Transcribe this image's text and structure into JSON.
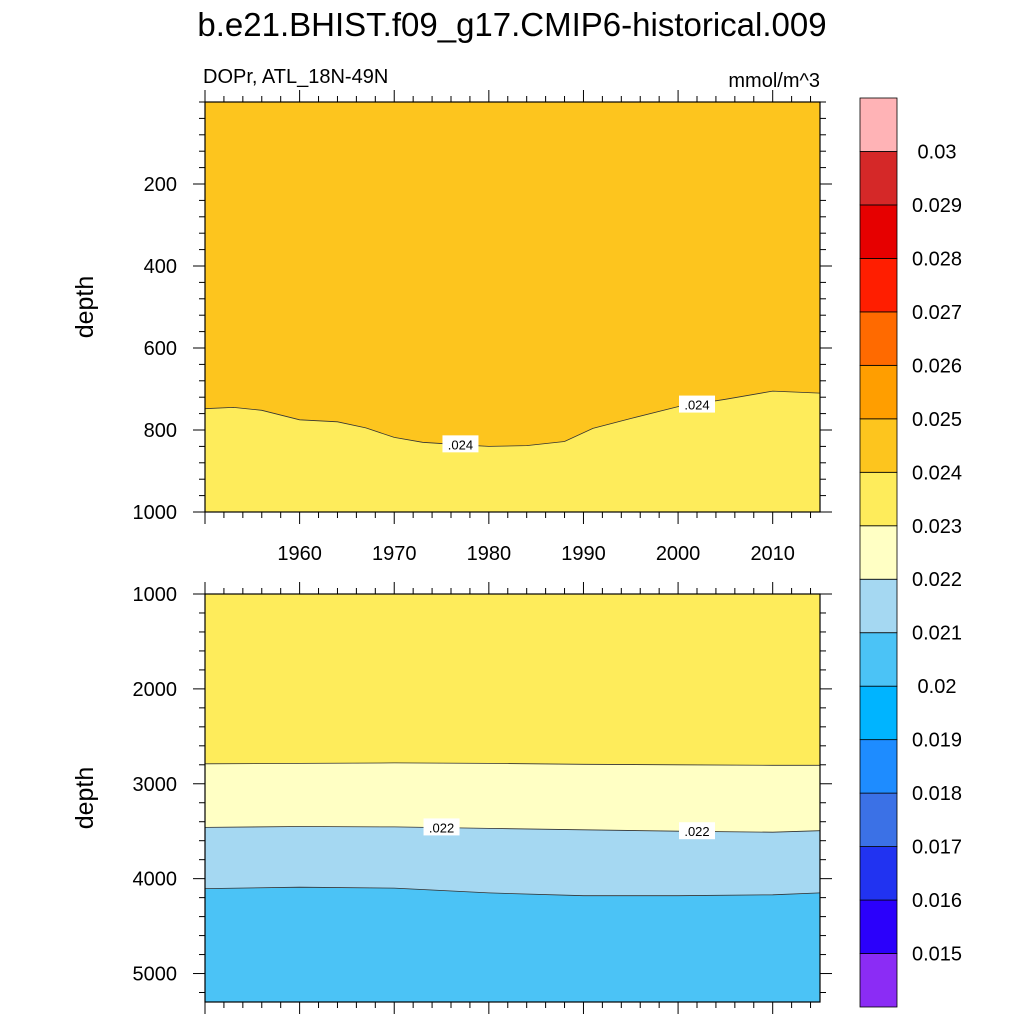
{
  "figure": {
    "title": "b.e21.BHIST.f09_g17.CMIP6-historical.009",
    "subtitle_left": "DOPr, ATL_18N-49N",
    "subtitle_right": "mmol/m^3"
  },
  "chart_data": [
    {
      "type": "contour",
      "panel": "upper",
      "xlabel": "",
      "ylabel": "depth",
      "xlim": [
        1950,
        2015
      ],
      "ylim": [
        1000,
        0
      ],
      "xticks": [
        1960,
        1970,
        1980,
        1990,
        2000,
        2010
      ],
      "xtick_labels": [
        "1960",
        "1970",
        "1980",
        "1990",
        "2000",
        "2010"
      ],
      "yticks": [
        200,
        400,
        600,
        800,
        1000
      ],
      "ytick_labels": [
        "200",
        "400",
        "600",
        "800",
        "1000"
      ],
      "x": [
        1950,
        1953,
        1956,
        1960,
        1964,
        1967,
        1970,
        1973,
        1977,
        1980,
        1984,
        1988,
        1991,
        1995,
        2000,
        2005,
        2010,
        2015
      ],
      "contours": [
        {
          "level": 0.024,
          "label": ".024",
          "label_positions": [
            [
              1977,
              835
            ],
            [
              2002,
              738
            ]
          ],
          "depth": [
            748,
            745,
            752,
            775,
            780,
            795,
            818,
            830,
            836,
            840,
            838,
            828,
            796,
            772,
            743,
            725,
            705,
            710
          ]
        }
      ],
      "regions": [
        {
          "range": "0.024-0.025",
          "color": "#fdc51e",
          "position": "above"
        },
        {
          "range": "0.023-0.024",
          "color": "#feec5b",
          "position": "below"
        }
      ]
    },
    {
      "type": "contour",
      "panel": "lower",
      "xlabel": "",
      "ylabel": "depth",
      "xlim": [
        1950,
        2015
      ],
      "ylim": [
        5300,
        1000
      ],
      "yticks": [
        1000,
        2000,
        3000,
        4000,
        5000
      ],
      "ytick_labels": [
        "1000",
        "2000",
        "3000",
        "4000",
        "5000"
      ],
      "x": [
        1950,
        1960,
        1970,
        1980,
        1990,
        2000,
        2010,
        2015
      ],
      "contours": [
        {
          "level": 0.023,
          "label": "",
          "depth": [
            2790,
            2785,
            2780,
            2785,
            2795,
            2800,
            2805,
            2805
          ]
        },
        {
          "level": 0.022,
          "label": ".022",
          "label_positions": [
            [
              1975,
              3460
            ],
            [
              2002,
              3500
            ]
          ],
          "depth": [
            3460,
            3450,
            3455,
            3470,
            3485,
            3500,
            3510,
            3495
          ]
        },
        {
          "level": 0.021,
          "label": "",
          "depth": [
            4105,
            4090,
            4100,
            4150,
            4180,
            4180,
            4170,
            4150
          ]
        }
      ],
      "regions": [
        {
          "range": "0.023-0.024",
          "color": "#feec5b"
        },
        {
          "range": "0.022-0.023",
          "color": "#ffffc4"
        },
        {
          "range": "0.021-0.022",
          "color": "#a5d8f2"
        },
        {
          "range": "0.02-0.021",
          "color": "#4bc3f6"
        }
      ]
    }
  ],
  "colorbar": {
    "levels": [
      "0.015",
      "0.016",
      "0.017",
      "0.018",
      "0.019",
      "0.02",
      "0.021",
      "0.022",
      "0.023",
      "0.024",
      "0.025",
      "0.026",
      "0.027",
      "0.028",
      "0.029",
      "0.03"
    ],
    "colors": [
      "#8b2cf5",
      "#2b00fb",
      "#2133f1",
      "#3b71e6",
      "#1e8cff",
      "#00b4ff",
      "#4bc3f6",
      "#a5d8f2",
      "#ffffc4",
      "#feec5b",
      "#fdc51e",
      "#ff9e00",
      "#ff6a00",
      "#ff1e00",
      "#e60000",
      "#d52828",
      "#ffb3b6"
    ]
  }
}
